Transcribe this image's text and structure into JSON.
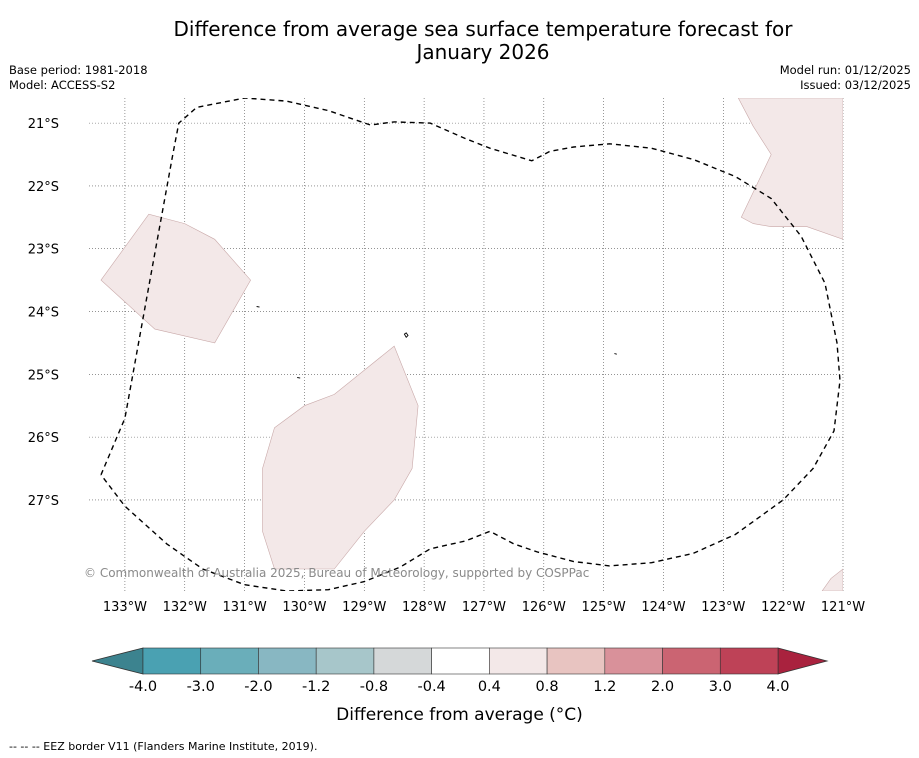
{
  "title_line1": "Difference from average sea surface temperature forecast for",
  "title_line2": "January 2026",
  "meta": {
    "base_period": "Base period: 1981-2018",
    "model": "Model: ACCESS-S2",
    "model_run": "Model run: 01/12/2025",
    "issued": "Issued: 03/12/2025"
  },
  "copyright": "© Commonwealth of Australia 2025, Bureau of Meteorology, supported by COSPPac",
  "footnote": "--  --  -- EEZ border V11 (Flanders Marine Institute, 2019).",
  "chart_data": {
    "type": "map",
    "title": "Difference from average sea surface temperature forecast for January 2026",
    "xlim": [
      -133.6,
      -121.0
    ],
    "ylim": [
      -28.45,
      -20.6
    ],
    "lon_ticks": [
      -133,
      -132,
      -131,
      -130,
      -129,
      -128,
      -127,
      -126,
      -125,
      -124,
      -123,
      -122,
      -121
    ],
    "lon_labels": [
      "133°W",
      "132°W",
      "131°W",
      "130°W",
      "129°W",
      "128°W",
      "127°W",
      "126°W",
      "125°W",
      "124°W",
      "123°W",
      "122°W",
      "121°W"
    ],
    "lat_ticks": [
      -21,
      -22,
      -23,
      -24,
      -25,
      -26,
      -27
    ],
    "lat_labels": [
      "21°S",
      "22°S",
      "23°S",
      "24°S",
      "25°S",
      "26°S",
      "27°S"
    ],
    "grid": true,
    "regions": [
      {
        "name": "anomaly-patch-west",
        "category": "0.4 to 0.8",
        "color": "#f3e8e8",
        "coords": [
          [
            -133.4,
            -23.5
          ],
          [
            -132.6,
            -22.45
          ],
          [
            -132.0,
            -22.6
          ],
          [
            -131.5,
            -22.85
          ],
          [
            -130.9,
            -23.5
          ],
          [
            -131.5,
            -24.5
          ],
          [
            -132.5,
            -24.28
          ],
          [
            -133.4,
            -23.5
          ]
        ]
      },
      {
        "name": "anomaly-patch-central",
        "category": "0.4 to 0.8",
        "color": "#f3e8e8",
        "coords": [
          [
            -130.5,
            -25.85
          ],
          [
            -130.0,
            -25.5
          ],
          [
            -129.5,
            -25.32
          ],
          [
            -128.5,
            -24.55
          ],
          [
            -128.1,
            -25.5
          ],
          [
            -128.2,
            -26.5
          ],
          [
            -128.5,
            -27.0
          ],
          [
            -129.0,
            -27.5
          ],
          [
            -129.5,
            -28.1
          ],
          [
            -130.5,
            -28.1
          ],
          [
            -130.7,
            -27.5
          ],
          [
            -130.7,
            -26.5
          ],
          [
            -130.5,
            -25.85
          ]
        ]
      },
      {
        "name": "anomaly-patch-northeast",
        "category": "0.4 to 0.8",
        "color": "#f3e8e8",
        "coords": [
          [
            -121.75,
            -20.6
          ],
          [
            -121.0,
            -20.6
          ],
          [
            -121.0,
            -22.85
          ],
          [
            -121.6,
            -22.65
          ],
          [
            -122.2,
            -22.65
          ],
          [
            -122.5,
            -22.6
          ],
          [
            -122.7,
            -22.5
          ],
          [
            -122.2,
            -21.5
          ],
          [
            -122.5,
            -21.05
          ],
          [
            -122.75,
            -20.6
          ]
        ]
      },
      {
        "name": "anomaly-patch-southeast",
        "category": "0.4 to 0.8",
        "color": "#f3e8e8",
        "coords": [
          [
            -121.35,
            -28.45
          ],
          [
            -121.2,
            -28.25
          ],
          [
            -121.0,
            -28.1
          ],
          [
            -121.0,
            -28.45
          ]
        ]
      }
    ],
    "eez_border": [
      [
        -133.4,
        -26.6
      ],
      [
        -133.0,
        -25.7
      ],
      [
        -132.6,
        -23.6
      ],
      [
        -132.2,
        -21.5
      ],
      [
        -132.1,
        -21.0
      ],
      [
        -131.8,
        -20.75
      ],
      [
        -131.0,
        -20.6
      ],
      [
        -130.3,
        -20.65
      ],
      [
        -129.6,
        -20.8
      ],
      [
        -128.9,
        -21.03
      ],
      [
        -128.5,
        -20.98
      ],
      [
        -127.9,
        -21.0
      ],
      [
        -127.3,
        -21.25
      ],
      [
        -126.9,
        -21.4
      ],
      [
        -126.2,
        -21.6
      ],
      [
        -125.9,
        -21.45
      ],
      [
        -125.5,
        -21.38
      ],
      [
        -124.9,
        -21.33
      ],
      [
        -124.2,
        -21.4
      ],
      [
        -123.5,
        -21.58
      ],
      [
        -122.8,
        -21.85
      ],
      [
        -122.2,
        -22.2
      ],
      [
        -121.7,
        -22.8
      ],
      [
        -121.3,
        -23.55
      ],
      [
        -121.1,
        -24.5
      ],
      [
        -121.05,
        -25.1
      ],
      [
        -121.15,
        -25.9
      ],
      [
        -121.5,
        -26.5
      ],
      [
        -122.0,
        -27.0
      ],
      [
        -122.8,
        -27.55
      ],
      [
        -123.5,
        -27.85
      ],
      [
        -124.2,
        -28.0
      ],
      [
        -124.9,
        -28.05
      ],
      [
        -125.5,
        -27.98
      ],
      [
        -126.1,
        -27.83
      ],
      [
        -126.5,
        -27.7
      ],
      [
        -126.9,
        -27.5
      ],
      [
        -127.3,
        -27.65
      ],
      [
        -127.9,
        -27.78
      ],
      [
        -128.4,
        -28.07
      ],
      [
        -129.0,
        -28.3
      ],
      [
        -129.6,
        -28.43
      ],
      [
        -130.3,
        -28.45
      ],
      [
        -131.0,
        -28.35
      ],
      [
        -131.7,
        -28.1
      ],
      [
        -132.3,
        -27.7
      ],
      [
        -133.0,
        -27.1
      ],
      [
        -133.4,
        -26.6
      ]
    ],
    "islands": [
      {
        "name": "islet-a",
        "coords": [
          [
            -128.33,
            -24.36
          ],
          [
            -128.3,
            -24.34
          ],
          [
            -128.27,
            -24.38
          ],
          [
            -128.3,
            -24.41
          ],
          [
            -128.33,
            -24.36
          ]
        ]
      },
      {
        "name": "islet-b",
        "coords": [
          [
            -130.8,
            -23.92
          ],
          [
            -130.75,
            -23.93
          ]
        ]
      },
      {
        "name": "islet-c",
        "coords": [
          [
            -130.12,
            -25.05
          ],
          [
            -130.07,
            -25.06
          ]
        ]
      },
      {
        "name": "islet-d",
        "coords": [
          [
            -124.82,
            -24.67
          ],
          [
            -124.78,
            -24.68
          ]
        ]
      }
    ],
    "colorbar": {
      "label": "Difference from average (°C)",
      "tick_labels": [
        "-4.0",
        "-3.0",
        "-2.0",
        "-1.2",
        "-0.8",
        "-0.4",
        "0.4",
        "0.8",
        "1.2",
        "2.0",
        "3.0",
        "4.0"
      ],
      "colors": [
        "#4aa1b2",
        "#6aaeba",
        "#88b7c2",
        "#a7c6ca",
        "#d5d8d9",
        "#ffffff",
        "#f3e8e8",
        "#e8c4c1",
        "#d9919a",
        "#cb6472",
        "#be4257"
      ],
      "under_color": "#3c838f",
      "over_color": "#a9223e"
    }
  }
}
